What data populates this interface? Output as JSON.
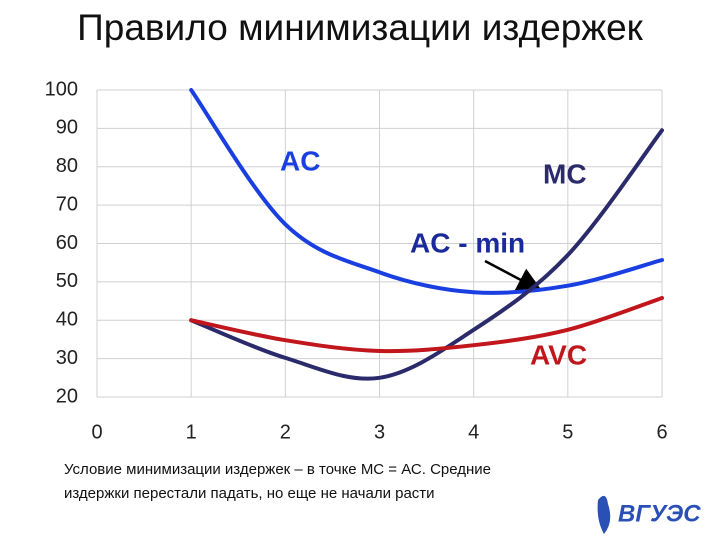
{
  "chart_data": {
    "type": "line",
    "title": "Правило минимизации издержек",
    "xlim": [
      0,
      6
    ],
    "xticks": [
      0,
      1,
      2,
      3,
      4,
      5,
      6
    ],
    "ylim": [
      20,
      100
    ],
    "yticks": [
      20,
      30,
      40,
      50,
      60,
      70,
      80,
      90,
      100
    ],
    "grid": true,
    "x": [
      1,
      2,
      3,
      4,
      5,
      6
    ],
    "series": [
      {
        "name": "AC",
        "color": "#1a3fe0",
        "values": [
          100,
          65,
          52.5,
          47.3,
          49,
          55.7
        ]
      },
      {
        "name": "MC",
        "color": "#2b2b6b",
        "values": [
          40,
          30.2,
          25,
          37.5,
          57,
          89.5
        ]
      },
      {
        "name": "AVC",
        "color": "#c0161c",
        "values": [
          40,
          34.8,
          32,
          33.5,
          37.5,
          45.8
        ]
      }
    ],
    "annotation": "AC - min",
    "caption": [
      "Условие минимизации издержек – в  точке МС = АС. Средние",
      "издержки перестали падать, но еще не начали расти"
    ],
    "logo": "ВГУЭС"
  }
}
